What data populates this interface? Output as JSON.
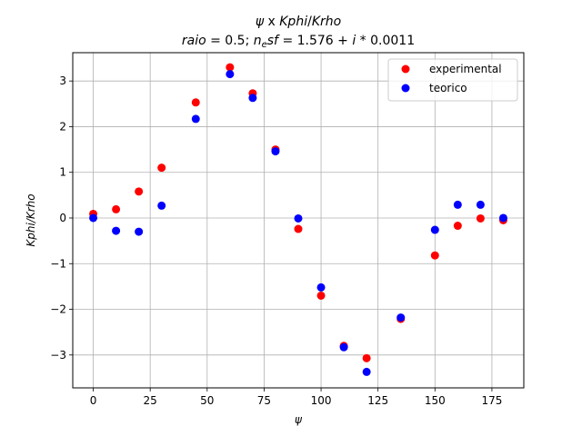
{
  "chart_data": {
    "type": "scatter",
    "title_line1": "ψ x Kphi/Krho",
    "title_line2": "raio = 0.5; n_esf = 1.576 + i * 0.0011",
    "xlabel": "ψ",
    "ylabel": "Kphi/Krho",
    "xlim": [
      -9,
      189
    ],
    "ylim": [
      -3.72,
      3.62
    ],
    "xticks": [
      0,
      25,
      50,
      75,
      100,
      125,
      150,
      175
    ],
    "yticks": [
      -3,
      -2,
      -1,
      0,
      1,
      2,
      3
    ],
    "grid": true,
    "legend_position": "top-right",
    "series": [
      {
        "name": "experimental",
        "color": "#ff0000",
        "points": [
          [
            0,
            0.09
          ],
          [
            10,
            0.19
          ],
          [
            20,
            0.58
          ],
          [
            30,
            1.1
          ],
          [
            45,
            2.53
          ],
          [
            60,
            3.3
          ],
          [
            70,
            2.73
          ],
          [
            80,
            1.5
          ],
          [
            90,
            -0.24
          ],
          [
            100,
            -1.7
          ],
          [
            110,
            -2.8
          ],
          [
            120,
            -3.07
          ],
          [
            135,
            -2.21
          ],
          [
            150,
            -0.82
          ],
          [
            160,
            -0.17
          ],
          [
            170,
            -0.01
          ],
          [
            180,
            -0.05
          ]
        ]
      },
      {
        "name": "teorico",
        "color": "#0000ff",
        "points": [
          [
            0,
            0.0
          ],
          [
            10,
            -0.28
          ],
          [
            20,
            -0.3
          ],
          [
            30,
            0.27
          ],
          [
            45,
            2.17
          ],
          [
            60,
            3.15
          ],
          [
            70,
            2.63
          ],
          [
            80,
            1.46
          ],
          [
            90,
            -0.01
          ],
          [
            100,
            -1.52
          ],
          [
            110,
            -2.83
          ],
          [
            120,
            -3.37
          ],
          [
            135,
            -2.18
          ],
          [
            150,
            -0.26
          ],
          [
            160,
            0.29
          ],
          [
            170,
            0.29
          ],
          [
            180,
            0.0
          ]
        ]
      }
    ]
  }
}
